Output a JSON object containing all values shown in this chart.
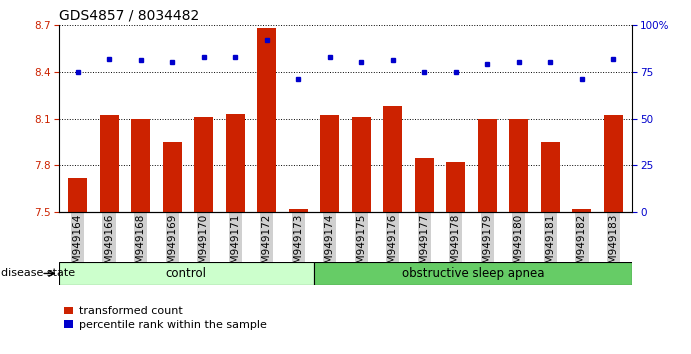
{
  "title": "GDS4857 / 8034482",
  "samples": [
    "GSM949164",
    "GSM949166",
    "GSM949168",
    "GSM949169",
    "GSM949170",
    "GSM949171",
    "GSM949172",
    "GSM949173",
    "GSM949174",
    "GSM949175",
    "GSM949176",
    "GSM949177",
    "GSM949178",
    "GSM949179",
    "GSM949180",
    "GSM949181",
    "GSM949182",
    "GSM949183"
  ],
  "red_values": [
    7.72,
    8.12,
    8.1,
    7.95,
    8.11,
    8.13,
    8.68,
    7.52,
    8.12,
    8.11,
    8.18,
    7.85,
    7.82,
    8.1,
    8.1,
    7.95,
    7.52,
    8.12
  ],
  "blue_values": [
    75,
    82,
    81,
    80,
    83,
    83,
    92,
    71,
    83,
    80,
    81,
    75,
    75,
    79,
    80,
    80,
    71,
    82
  ],
  "ylim_left": [
    7.5,
    8.7
  ],
  "ylim_right": [
    0,
    100
  ],
  "yticks_left": [
    7.5,
    7.8,
    8.1,
    8.4,
    8.7
  ],
  "yticks_right": [
    0,
    25,
    50,
    75,
    100
  ],
  "bar_color": "#cc2200",
  "dot_color": "#0000cc",
  "ctrl_n": 8,
  "apnea_n": 10,
  "control_label": "control",
  "apnea_label": "obstructive sleep apnea",
  "control_color": "#ccffcc",
  "apnea_color": "#66cc66",
  "disease_label": "disease state",
  "legend_red": "transformed count",
  "legend_blue": "percentile rank within the sample",
  "title_fontsize": 10,
  "tick_fontsize": 7.5,
  "label_fontsize": 8.5,
  "bar_width": 0.6
}
